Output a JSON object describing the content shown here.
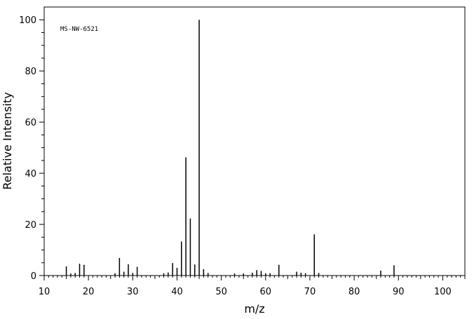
{
  "chart_data": {
    "type": "bar",
    "annotation": "MS-NW-6521",
    "xlabel": "m/z",
    "ylabel": "Relative Intensity",
    "xlim": [
      10,
      105
    ],
    "ylim": [
      0,
      105
    ],
    "x_ticks": [
      "10",
      "20",
      "30",
      "40",
      "50",
      "60",
      "70",
      "80",
      "90",
      "100"
    ],
    "y_ticks": [
      "0",
      "20",
      "40",
      "60",
      "80",
      "100"
    ],
    "grid": false,
    "legend": "none",
    "x": [
      15,
      16,
      17,
      18,
      19,
      26,
      27,
      28,
      29,
      30,
      31,
      37,
      38,
      39,
      40,
      41,
      42,
      43,
      44,
      45,
      46,
      47,
      53,
      55,
      57,
      58,
      59,
      60,
      61,
      63,
      67,
      68,
      69,
      71,
      72,
      86,
      89
    ],
    "values": [
      3.6,
      0.8,
      1.0,
      4.6,
      4.2,
      0.9,
      6.9,
      1.5,
      4.4,
      1.0,
      3.4,
      0.9,
      1.2,
      4.9,
      3.0,
      13.3,
      46.2,
      22.3,
      4.3,
      100,
      2.5,
      1.0,
      0.8,
      0.8,
      1.1,
      2.1,
      1.8,
      0.9,
      0.9,
      4.2,
      1.5,
      1.1,
      0.9,
      16.1,
      1.0,
      1.9,
      4.0
    ]
  }
}
